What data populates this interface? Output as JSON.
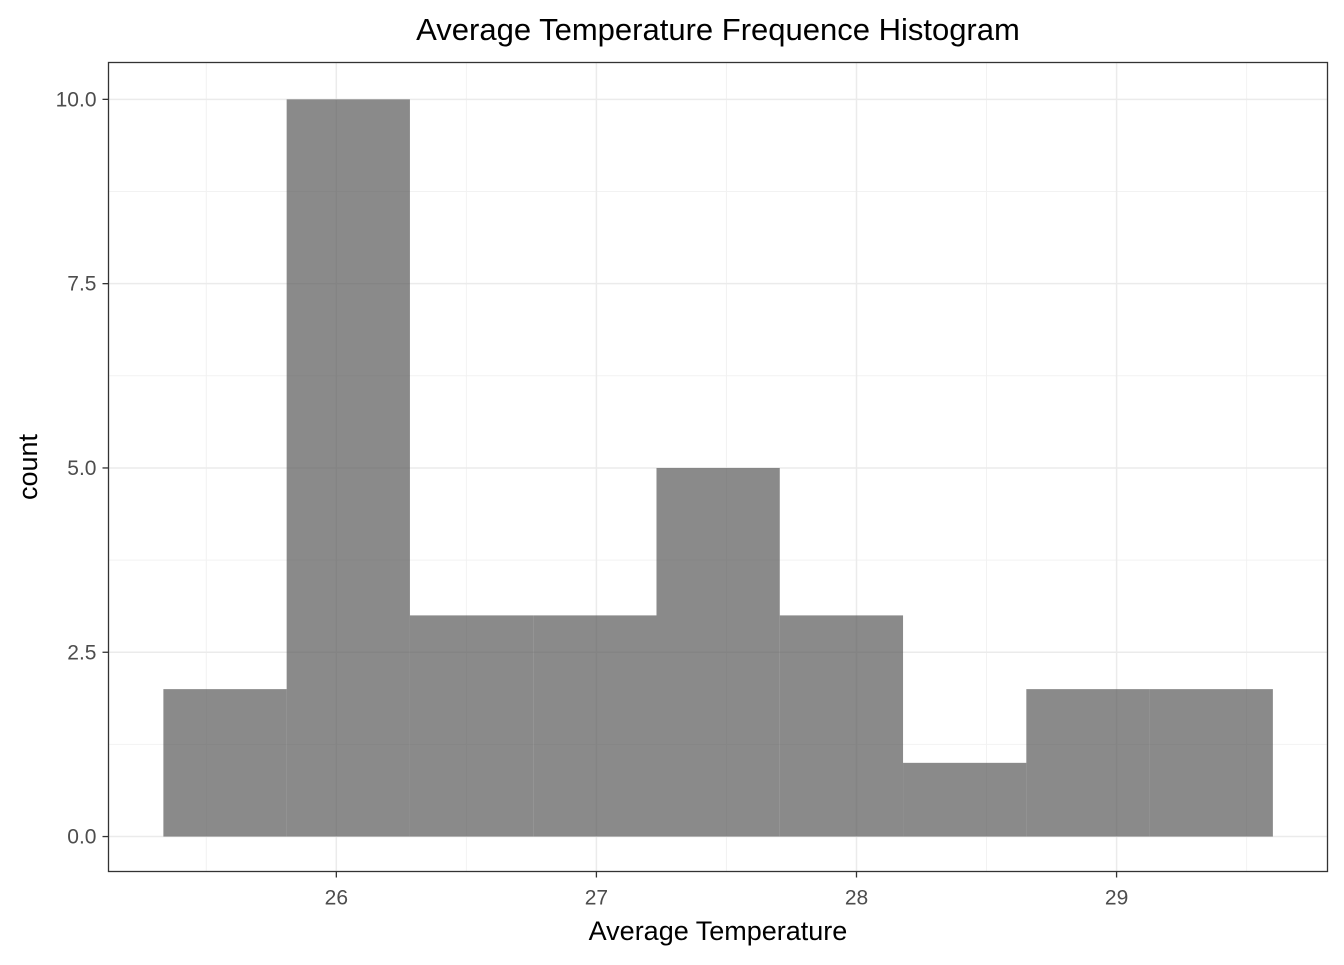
{
  "chart_data": {
    "type": "bar",
    "title": "Average Temperature Frequence Histogram",
    "xlabel": "Average Temperature",
    "ylabel": "count",
    "bin_edges": [
      25.335,
      25.809,
      26.283,
      26.757,
      27.231,
      27.705,
      28.179,
      28.653,
      29.127,
      29.601
    ],
    "values": [
      2,
      10,
      3,
      3,
      5,
      3,
      1,
      2,
      2
    ],
    "xlim": [
      25.124,
      29.811
    ],
    "ylim": [
      -0.474,
      10.5
    ],
    "x_ticks": [
      26,
      27,
      28,
      29
    ],
    "x_tick_labels": [
      "26",
      "27",
      "28",
      "29"
    ],
    "y_ticks": [
      0,
      2.5,
      5,
      7.5,
      10
    ],
    "y_tick_labels": [
      "0.0",
      "2.5",
      "5.0",
      "7.5",
      "10.0"
    ],
    "grid": true,
    "bar_color": "#595959",
    "bar_opacity": 0.7
  }
}
